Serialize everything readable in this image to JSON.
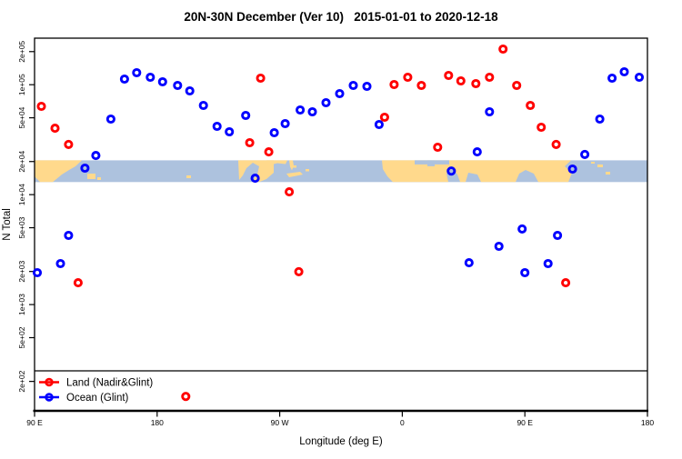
{
  "chart_data": {
    "type": "scatter",
    "title": "20N-30N December (Ver 10)   2015-01-01 to 2020-12-18",
    "xlabel": "Longitude (deg E)",
    "ylabel": "N Total",
    "x_axis": {
      "min": 90,
      "max": 540,
      "unit": "degrees east (wrapping past 180 through 90 W and 0 back to 180)",
      "ticks": [
        {
          "pos": 90,
          "label": "90 E"
        },
        {
          "pos": 180,
          "label": "180"
        },
        {
          "pos": 270,
          "label": "90 W"
        },
        {
          "pos": 360,
          "label": "0"
        },
        {
          "pos": 450,
          "label": "90 E"
        },
        {
          "pos": 540,
          "label": "180"
        }
      ]
    },
    "y_axis": {
      "scale": "log",
      "min": 108,
      "max": 265000,
      "ticks": [
        {
          "value": 200000,
          "label": "2e+05"
        },
        {
          "value": 100000,
          "label": "1e+05"
        },
        {
          "value": 50000,
          "label": "5e+04"
        },
        {
          "value": 20000,
          "label": "2e+04"
        },
        {
          "value": 10000,
          "label": "1e+04"
        },
        {
          "value": 5000,
          "label": "5e+03"
        },
        {
          "value": 2000,
          "label": "2e+03"
        },
        {
          "value": 1000,
          "label": "1e+03"
        },
        {
          "value": 500,
          "label": "5e+02"
        },
        {
          "value": 200,
          "label": "2e+02"
        }
      ]
    },
    "map_band": {
      "description": "land/ocean strip for the 20N-30N latitude belt drawn across the plot",
      "top_value": 20500,
      "bottom_value": 13100,
      "ocean_color": "#ADC2DE",
      "land_color": "#FFD98C"
    },
    "legend": [
      {
        "label": "Land (Nadir&Glint)",
        "color": "#FF0000"
      },
      {
        "label": "Ocean (Glint)",
        "color": "#0000FF"
      }
    ],
    "series": [
      {
        "name": "Land (Nadir&Glint)",
        "color": "#FF0000",
        "marker": "open-circle",
        "points": [
          [
            95,
            63600
          ],
          [
            105,
            40200
          ],
          [
            115,
            28600
          ],
          [
            122,
            1580
          ],
          [
            248,
            29700
          ],
          [
            256,
            114700
          ],
          [
            262,
            24500
          ],
          [
            277,
            10600
          ],
          [
            284,
            1990
          ],
          [
            347,
            50600
          ],
          [
            354,
            100400
          ],
          [
            364,
            116900
          ],
          [
            374,
            98500
          ],
          [
            386,
            27000
          ],
          [
            394,
            121400
          ],
          [
            403,
            108300
          ],
          [
            414,
            102300
          ],
          [
            424,
            116900
          ],
          [
            434,
            211000
          ],
          [
            444,
            98500
          ],
          [
            454,
            64800
          ],
          [
            462,
            41000
          ],
          [
            473,
            28600
          ],
          [
            480,
            1580
          ],
          [
            201,
            146
          ]
        ]
      },
      {
        "name": "Ocean (Glint)",
        "color": "#0000FF",
        "marker": "open-circle",
        "points": [
          [
            92,
            1950
          ],
          [
            109,
            2360
          ],
          [
            115,
            4260
          ],
          [
            127,
            17400
          ],
          [
            135,
            22700
          ],
          [
            146,
            48700
          ],
          [
            156,
            112500
          ],
          [
            165,
            128600
          ],
          [
            175,
            116900
          ],
          [
            184,
            106300
          ],
          [
            195,
            98500
          ],
          [
            204,
            87800
          ],
          [
            214,
            64800
          ],
          [
            224,
            41800
          ],
          [
            233,
            37300
          ],
          [
            245,
            52500
          ],
          [
            252,
            14100
          ],
          [
            266,
            36600
          ],
          [
            274,
            44300
          ],
          [
            285,
            58900
          ],
          [
            294,
            56700
          ],
          [
            304,
            68600
          ],
          [
            314,
            83000
          ],
          [
            324,
            98500
          ],
          [
            334,
            96600
          ],
          [
            343,
            43400
          ],
          [
            396,
            16400
          ],
          [
            409,
            2400
          ],
          [
            415,
            24500
          ],
          [
            424,
            56700
          ],
          [
            431,
            3390
          ],
          [
            448,
            4870
          ],
          [
            450,
            1950
          ],
          [
            467,
            2360
          ],
          [
            474,
            4260
          ],
          [
            485,
            17100
          ],
          [
            494,
            23200
          ],
          [
            505,
            48700
          ],
          [
            514,
            114700
          ],
          [
            523,
            131000
          ],
          [
            534,
            116900
          ]
        ]
      }
    ]
  }
}
